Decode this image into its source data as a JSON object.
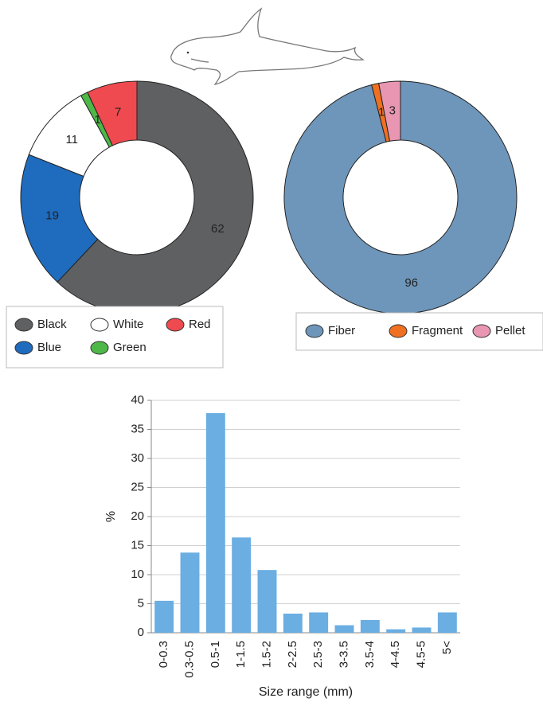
{
  "chart_data": [
    {
      "type": "donut",
      "categories": [
        "Black",
        "Blue",
        "White",
        "Green",
        "Red"
      ],
      "values": [
        62,
        19,
        11,
        1,
        7
      ],
      "colors": [
        "#5f6062",
        "#1f6bbd",
        "#ffffff",
        "#4db848",
        "#ee4a4f"
      ]
    },
    {
      "type": "donut",
      "categories": [
        "Fiber",
        "Fragment",
        "Pellet"
      ],
      "values": [
        96,
        1,
        3
      ],
      "colors": [
        "#6e96ba",
        "#f07022",
        "#e896b1"
      ]
    },
    {
      "type": "bar",
      "categories": [
        "0-0.3",
        "0.3-0.5",
        "0.5-1",
        "1-1.5",
        "1.5-2",
        "2-2.5",
        "2.5-3",
        "3-3.5",
        "3.5-4",
        "4-4.5",
        "4.5-5",
        "5<"
      ],
      "values": [
        5.5,
        13.8,
        37.8,
        16.4,
        10.8,
        3.3,
        3.5,
        1.3,
        2.2,
        0.6,
        0.9,
        3.5
      ],
      "color": "#6aaee2",
      "ylim": [
        0,
        40
      ],
      "yticks": [
        0,
        5,
        10,
        15,
        20,
        25,
        30,
        35,
        40
      ],
      "grid": true,
      "ylabel": "%",
      "xlabel": "Size range (mm)"
    }
  ]
}
